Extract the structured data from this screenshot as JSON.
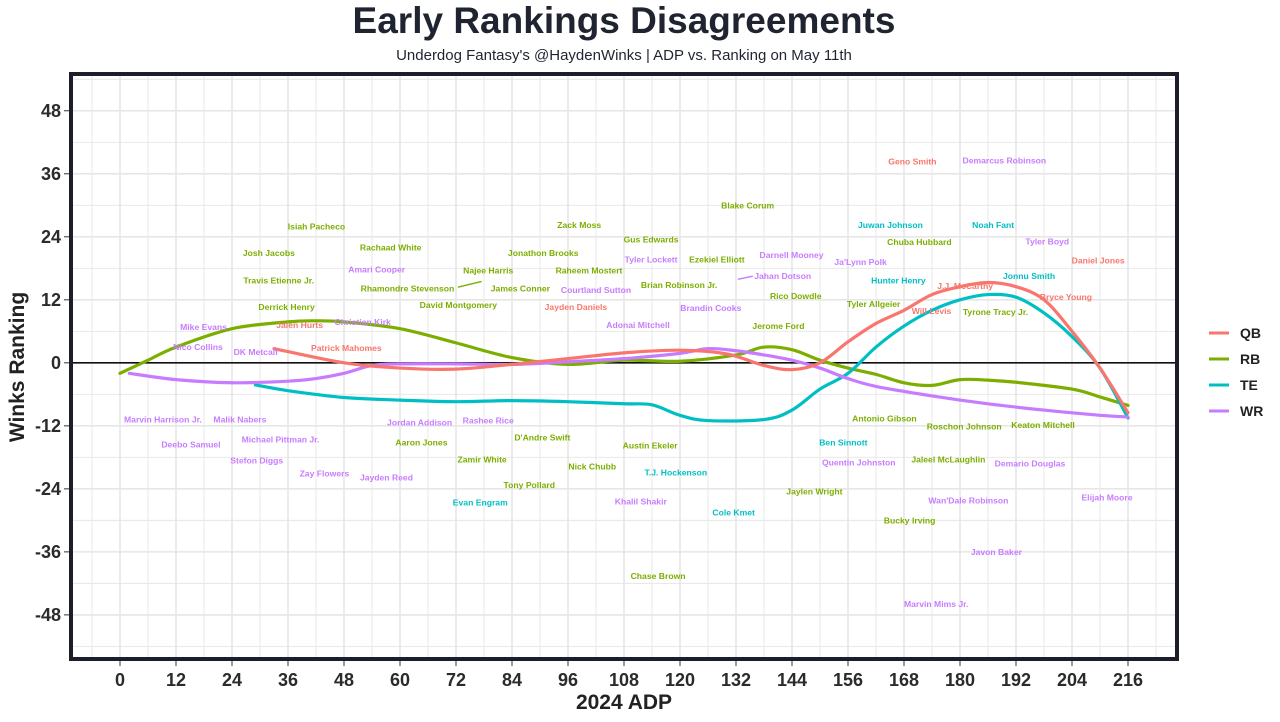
{
  "title": "Early Rankings Disagreements",
  "subtitle": "Underdog Fantasy's @HaydenWinks | ADP vs. Ranking on May 11th",
  "chart_data": {
    "type": "scatter",
    "title": "Early Rankings Disagreements",
    "subtitle": "Underdog Fantasy's @HaydenWinks | ADP vs. Ranking on May 11th",
    "xlabel": "2024 ADP",
    "ylabel": "Winks Ranking",
    "xlim": [
      -10.5,
      226.5
    ],
    "ylim": [
      -56.4,
      55
    ],
    "xticks": [
      0,
      12,
      24,
      36,
      48,
      60,
      72,
      84,
      96,
      108,
      120,
      132,
      144,
      156,
      168,
      180,
      192,
      204,
      216
    ],
    "yticks": [
      48,
      36,
      24,
      12,
      0,
      -12,
      -24,
      -36,
      -48
    ],
    "grid": true,
    "legend_position": "right",
    "colors": {
      "QB": "#F8766D",
      "RB": "#7CAE00",
      "TE": "#00BFC4",
      "WR": "#C77CFF"
    },
    "legend": [
      "QB",
      "RB",
      "TE",
      "WR"
    ],
    "smooth_lines": {
      "QB": [
        [
          33,
          2.7
        ],
        [
          48,
          0
        ],
        [
          60,
          -1
        ],
        [
          72,
          -1.2
        ],
        [
          84,
          -0.3
        ],
        [
          96,
          0.8
        ],
        [
          108,
          1.9
        ],
        [
          120,
          2.4
        ],
        [
          130,
          1.7
        ],
        [
          138,
          -0.5
        ],
        [
          144,
          -1.3
        ],
        [
          150,
          0
        ],
        [
          156,
          4
        ],
        [
          162,
          7.5
        ],
        [
          168,
          10
        ],
        [
          174,
          13
        ],
        [
          180,
          14.5
        ],
        [
          186,
          15.3
        ],
        [
          192,
          14.5
        ],
        [
          198,
          12
        ],
        [
          204,
          6
        ],
        [
          210,
          -1
        ],
        [
          216,
          -9.5
        ]
      ],
      "RB": [
        [
          0,
          -2
        ],
        [
          6,
          0.5
        ],
        [
          12,
          3
        ],
        [
          24,
          6.5
        ],
        [
          36,
          7.8
        ],
        [
          42,
          8
        ],
        [
          48,
          7.8
        ],
        [
          60,
          6.5
        ],
        [
          72,
          3.8
        ],
        [
          84,
          1
        ],
        [
          96,
          -0.3
        ],
        [
          108,
          0.5
        ],
        [
          120,
          0.3
        ],
        [
          132,
          1.5
        ],
        [
          138,
          3
        ],
        [
          144,
          2.5
        ],
        [
          150,
          0.5
        ],
        [
          156,
          -1
        ],
        [
          162,
          -2.2
        ],
        [
          168,
          -3.8
        ],
        [
          174,
          -4.3
        ],
        [
          180,
          -3.2
        ],
        [
          186,
          -3.3
        ],
        [
          192,
          -3.7
        ],
        [
          204,
          -5
        ],
        [
          210,
          -6.5
        ],
        [
          216,
          -8.1
        ]
      ],
      "TE": [
        [
          29,
          -4.2
        ],
        [
          36,
          -5.3
        ],
        [
          48,
          -6.6
        ],
        [
          60,
          -7.1
        ],
        [
          72,
          -7.4
        ],
        [
          84,
          -7.2
        ],
        [
          96,
          -7.4
        ],
        [
          108,
          -7.8
        ],
        [
          114,
          -8
        ],
        [
          120,
          -10
        ],
        [
          126,
          -11
        ],
        [
          138,
          -10.8
        ],
        [
          144,
          -9
        ],
        [
          150,
          -5
        ],
        [
          156,
          -2
        ],
        [
          162,
          3
        ],
        [
          168,
          7
        ],
        [
          174,
          10
        ],
        [
          180,
          12
        ],
        [
          186,
          13
        ],
        [
          192,
          12.5
        ],
        [
          198,
          9.5
        ],
        [
          204,
          5
        ],
        [
          210,
          -1
        ],
        [
          216,
          -10.5
        ]
      ],
      "WR": [
        [
          2,
          -2
        ],
        [
          12,
          -3.2
        ],
        [
          24,
          -3.8
        ],
        [
          36,
          -3.5
        ],
        [
          42,
          -3
        ],
        [
          48,
          -2
        ],
        [
          54,
          -0.5
        ],
        [
          60,
          -0.2
        ],
        [
          72,
          -0.2
        ],
        [
          84,
          -0.3
        ],
        [
          96,
          0.2
        ],
        [
          108,
          0.8
        ],
        [
          120,
          1.8
        ],
        [
          126,
          2.7
        ],
        [
          132,
          2.3
        ],
        [
          138,
          1.5
        ],
        [
          144,
          0.5
        ],
        [
          150,
          -1
        ],
        [
          156,
          -3
        ],
        [
          162,
          -4.5
        ],
        [
          174,
          -6.3
        ],
        [
          186,
          -7.8
        ],
        [
          198,
          -9
        ],
        [
          210,
          -10
        ],
        [
          216,
          -10.3
        ]
      ]
    },
    "points": [
      [
        "Geno Smith",
        "QB",
        169.8,
        38.3
      ],
      [
        "J.J. McCarthy",
        "QB",
        181.1,
        14.6
      ],
      [
        "Daniel Jones",
        "QB",
        209.6,
        19.5
      ],
      [
        "Bryce Young",
        "QB",
        202.7,
        12.5
      ],
      [
        "Will Levis",
        "QB",
        173.9,
        9.9
      ],
      [
        "Jayden Daniels",
        "QB",
        97.7,
        10.6
      ],
      [
        "Jalen Hurts",
        "QB",
        38.5,
        7.2
      ],
      [
        "Patrick Mahomes",
        "QB",
        48.5,
        2.8
      ],
      [
        "Isiah Pacheco",
        "RB",
        42.1,
        26
      ],
      [
        "Josh Jacobs",
        "RB",
        31.9,
        20.9
      ],
      [
        "Travis Etienne Jr.",
        "RB",
        34,
        15.7
      ],
      [
        "Derrick Henry",
        "RB",
        35.7,
        10.6
      ],
      [
        "Rachaad White",
        "RB",
        58,
        22
      ],
      [
        "Rhamondre Stevenson",
        "RB",
        61.6,
        14.2
      ],
      [
        "Najee Harris",
        "RB",
        78.9,
        17.6
      ],
      [
        "James Conner",
        "RB",
        85.8,
        14.2
      ],
      [
        "David Montgomery",
        "RB",
        72.5,
        11
      ],
      [
        "Jonathon Brooks",
        "RB",
        90.7,
        20.9
      ],
      [
        "Zack Moss",
        "RB",
        98.4,
        26.2
      ],
      [
        "Raheem Mostert",
        "RB",
        100.5,
        17.6
      ],
      [
        "Gus Edwards",
        "RB",
        113.8,
        23.5
      ],
      [
        "Ezekiel Elliott",
        "RB",
        127.9,
        19.7
      ],
      [
        "Brian Robinson Jr.",
        "RB",
        119.8,
        14.8
      ],
      [
        "Blake Corum",
        "RB",
        134.5,
        30
      ],
      [
        "Rico Dowdle",
        "RB",
        144.8,
        12.7
      ],
      [
        "Jerome Ford",
        "RB",
        141.1,
        7
      ],
      [
        "Chuba Hubbard",
        "RB",
        171.3,
        23
      ],
      [
        "Tyler Allgeier",
        "RB",
        161.5,
        11.2
      ],
      [
        "Tyrone Tracy Jr.",
        "RB",
        187.6,
        9.7
      ],
      [
        "Antonio Gibson",
        "RB",
        163.8,
        -10.6
      ],
      [
        "Roschon Johnson",
        "RB",
        180.9,
        -12.1
      ],
      [
        "Keaton Mitchell",
        "RB",
        197.8,
        -11.8
      ],
      [
        "Jaleel McLaughlin",
        "RB",
        177.5,
        -18.4
      ],
      [
        "Aaron Jones",
        "RB",
        64.6,
        -15.2
      ],
      [
        "D'Andre Swift",
        "RB",
        90.5,
        -14.2
      ],
      [
        "Zamir White",
        "RB",
        77.6,
        -18.4
      ],
      [
        "Nick Chubb",
        "RB",
        101.2,
        -19.7
      ],
      [
        "Austin Ekeler",
        "RB",
        113.6,
        -15.7
      ],
      [
        "Tony Pollard",
        "RB",
        87.7,
        -23.3
      ],
      [
        "Jaylen Wright",
        "RB",
        148.8,
        -24.5
      ],
      [
        "Bucky Irving",
        "RB",
        169.2,
        -30
      ],
      [
        "Chase Brown",
        "RB",
        115.3,
        -40.6
      ],
      [
        "Juwan Johnson",
        "TE",
        165.1,
        26.2
      ],
      [
        "Noah Fant",
        "TE",
        187.1,
        26.2
      ],
      [
        "Hunter Henry",
        "TE",
        166.8,
        15.7
      ],
      [
        "Jonnu Smith",
        "TE",
        194.8,
        16.5
      ],
      [
        "Ben Sinnott",
        "TE",
        155,
        -15.2
      ],
      [
        "T.J. Hockenson",
        "TE",
        119.1,
        -20.9
      ],
      [
        "Evan Engram",
        "TE",
        77.2,
        -26.6
      ],
      [
        "Cole Kmet",
        "TE",
        131.5,
        -28.5
      ],
      [
        "Demarcus Robinson",
        "WR",
        189.5,
        38.5
      ],
      [
        "Tyler Boyd",
        "WR",
        198.7,
        23.1
      ],
      [
        "Ja'Lynn Polk",
        "WR",
        158.7,
        19.2
      ],
      [
        "Darnell Mooney",
        "WR",
        143.9,
        20.5
      ],
      [
        "Jahan Dotson",
        "WR",
        142,
        16.5
      ],
      [
        "Tyler Lockett",
        "WR",
        113.8,
        19.7
      ],
      [
        "Courtland Sutton",
        "WR",
        102,
        13.9
      ],
      [
        "Brandin Cooks",
        "WR",
        126.6,
        10.4
      ],
      [
        "Adonai Mitchell",
        "WR",
        111,
        7.2
      ],
      [
        "Amari Cooper",
        "WR",
        55,
        17.8
      ],
      [
        "Christian Kirk",
        "WR",
        52,
        7.8
      ],
      [
        "Mike Evans",
        "WR",
        17.9,
        6.8
      ],
      [
        "Nico Collins",
        "WR",
        16.7,
        3
      ],
      [
        "DK Metcalf",
        "WR",
        29.1,
        2.1
      ],
      [
        "Marvin Harrison Jr.",
        "WR",
        9.2,
        -10.8
      ],
      [
        "Malik Nabers",
        "WR",
        25.7,
        -10.8
      ],
      [
        "Deebo Samuel",
        "WR",
        15.2,
        -15.6
      ],
      [
        "Michael Pittman Jr.",
        "WR",
        34.4,
        -14.6
      ],
      [
        "Stefon Diggs",
        "WR",
        29.3,
        -18.6
      ],
      [
        "Zay Flowers",
        "WR",
        43.8,
        -21.1
      ],
      [
        "Jayden Reed",
        "WR",
        57.1,
        -21.8
      ],
      [
        "Jordan Addison",
        "WR",
        64.2,
        -11.4
      ],
      [
        "Rashee Rice",
        "WR",
        78.9,
        -11
      ],
      [
        "Khalil Shakir",
        "WR",
        111.6,
        -26.4
      ],
      [
        "Quentin Johnston",
        "WR",
        158.3,
        -19
      ],
      [
        "Demario Douglas",
        "WR",
        195,
        -19.2
      ],
      [
        "Wan'Dale Robinson",
        "WR",
        181.8,
        -26.2
      ],
      [
        "Elijah Moore",
        "WR",
        211.5,
        -25.6
      ],
      [
        "Javon Baker",
        "WR",
        187.8,
        -36
      ],
      [
        "Marvin Mims Jr.",
        "WR",
        174.9,
        -45.9
      ]
    ],
    "leader_lines": [
      [
        "Rhamondre Stevenson",
        [
          72.4,
          14.4
        ],
        [
          77.5,
          15.5
        ]
      ],
      [
        "Jahan Dotson",
        [
          132.4,
          15.9
        ],
        [
          135.6,
          16.5
        ]
      ]
    ]
  }
}
